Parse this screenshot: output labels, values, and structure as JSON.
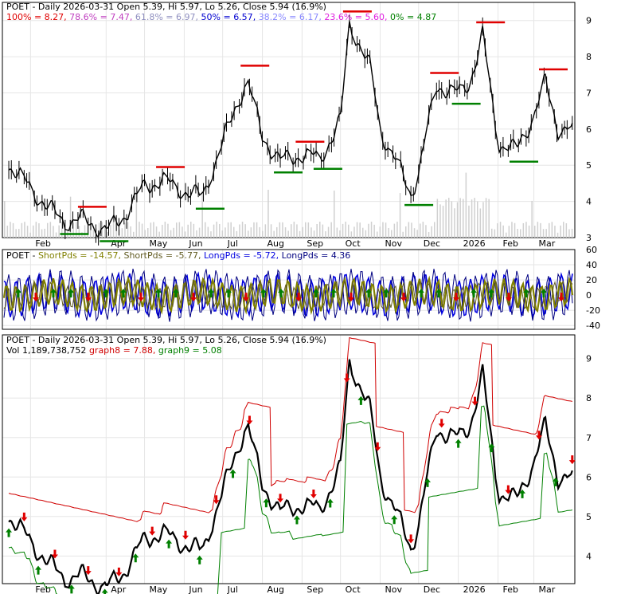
{
  "colors": {
    "background": "#ffffff",
    "grid": "#e6e6e6",
    "frame": "#000000",
    "price": "#000000",
    "resistance": "#e00000",
    "support": "#008000",
    "fib100": "#e00000",
    "fib786": "#c040c0",
    "fib618": "#9090c0",
    "fib50": "#0000d0",
    "fib382": "#8888ff",
    "fib236": "#e020e0",
    "fib0": "#008000",
    "shortPds1": "#808000",
    "shortPds2": "#605a20",
    "longPds1": "#0000e0",
    "longPds2": "#000080",
    "volume": "#d0d0d0",
    "graph8": "#d00000",
    "graph9": "#008000",
    "arrowUp": "#008000",
    "arrowDown": "#e00000"
  },
  "panel1": {
    "title": "POET - Daily 2026-03-31 Open 5.39, Hi 5.97, Lo 5.26, Close 5.94 (16.9%)",
    "fib": [
      {
        "label": "100%",
        "value": "8.27",
        "color": "#e00000"
      },
      {
        "label": "78.6%",
        "value": "7.47",
        "color": "#c040c0"
      },
      {
        "label": "61.8%",
        "value": "6.97",
        "color": "#9090c0"
      },
      {
        "label": "50%",
        "value": "6.57",
        "color": "#0000d0"
      },
      {
        "label": "38.2%",
        "value": "6.17",
        "color": "#8888ff"
      },
      {
        "label": "23.6%",
        "value": "5.60",
        "color": "#e020e0"
      },
      {
        "label": "0%",
        "value": "4.87",
        "color": "#008000"
      }
    ],
    "y_ticks": [
      "9",
      "8",
      "7",
      "6",
      "5",
      "4",
      "3"
    ],
    "x_ticks": [
      "Feb",
      "Apr",
      "May",
      "Jun",
      "Jul",
      "Aug",
      "Sep",
      "Oct",
      "Nov",
      "Dec",
      "2026",
      "Feb",
      "Mar"
    ]
  },
  "panel2": {
    "title_prefix": "POET - ",
    "items": [
      {
        "text": "ShortPds = -14.57, ",
        "color": "#808000"
      },
      {
        "text": "ShortPds = -5.77, ",
        "color": "#605a20"
      },
      {
        "text": "LongPds = -5.72, ",
        "color": "#0000e0"
      },
      {
        "text": "LongPds = 4.36",
        "color": "#000080"
      }
    ],
    "y_ticks": [
      "60",
      "40",
      "20",
      "0",
      "-20",
      "-40"
    ]
  },
  "panel3": {
    "title": "POET - Daily 2026-03-31 Open 5.39, Hi 5.97, Lo 5.26, Close 5.94 (16.9%)",
    "vol_items": [
      {
        "text": "Vol 1,189,738,752 ",
        "color": "#000000"
      },
      {
        "text": "graph8 = 7.88, ",
        "color": "#d00000"
      },
      {
        "text": "graph9 = 5.08",
        "color": "#008000"
      }
    ],
    "y_ticks": [
      "9",
      "8",
      "7",
      "6",
      "5",
      "4"
    ],
    "x_ticks": [
      "Feb",
      "Apr",
      "May",
      "Jun",
      "Jul",
      "Aug",
      "Sep",
      "Oct",
      "Nov",
      "Dec",
      "2026",
      "Feb",
      "Mar"
    ]
  },
  "chart_data": {
    "type": "line",
    "title": "POET - Daily 2026-03-31 Open 5.39, Hi 5.97, Lo 5.26, Close 5.94 (16.9%)",
    "x": [
      "2025-01-15",
      "2025-02-01",
      "2025-02-15",
      "2025-03-01",
      "2025-03-15",
      "2025-04-01",
      "2025-04-15",
      "2025-05-01",
      "2025-05-15",
      "2025-06-01",
      "2025-06-15",
      "2025-07-01",
      "2025-07-10",
      "2025-07-20",
      "2025-08-01",
      "2025-08-15",
      "2025-09-01",
      "2025-09-15",
      "2025-10-01",
      "2025-10-08",
      "2025-10-15",
      "2025-10-25",
      "2025-11-01",
      "2025-11-15",
      "2025-11-25",
      "2025-12-01",
      "2025-12-15",
      "2026-01-01",
      "2026-01-10",
      "2026-01-20",
      "2026-02-01",
      "2026-02-15",
      "2026-03-01",
      "2026-03-10",
      "2026-03-20",
      "2026-03-31"
    ],
    "series": [
      {
        "name": "Close",
        "values": [
          5.0,
          4.4,
          3.8,
          3.4,
          3.5,
          3.2,
          3.6,
          4.4,
          4.6,
          4.3,
          4.1,
          5.6,
          6.5,
          7.4,
          5.8,
          5.1,
          5.3,
          5.2,
          6.2,
          8.9,
          8.4,
          7.6,
          6.0,
          5.0,
          4.2,
          4.8,
          7.2,
          7.0,
          7.3,
          8.6,
          5.6,
          5.4,
          6.4,
          7.3,
          6.0,
          5.94
        ]
      }
    ],
    "fib_levels": [
      8.27,
      7.47,
      6.97,
      6.57,
      6.17,
      5.6,
      4.87
    ],
    "ylim": [
      3,
      9.5
    ],
    "y_ticks": [
      3,
      4,
      5,
      6,
      7,
      8,
      9
    ],
    "grid": true,
    "oscillator": {
      "ylim": [
        -45,
        60
      ],
      "y_ticks": [
        60,
        40,
        20,
        0,
        -20,
        -40
      ],
      "ShortPds": [
        -14.57,
        -5.77
      ],
      "LongPds": [
        -5.72,
        4.36
      ]
    },
    "lower_panel": {
      "ylim": [
        3.3,
        9.6
      ],
      "y_ticks": [
        9,
        8,
        7,
        6,
        5,
        4
      ],
      "graph8": 7.88,
      "graph9": 5.08,
      "volume": "1,189,738,752"
    }
  }
}
